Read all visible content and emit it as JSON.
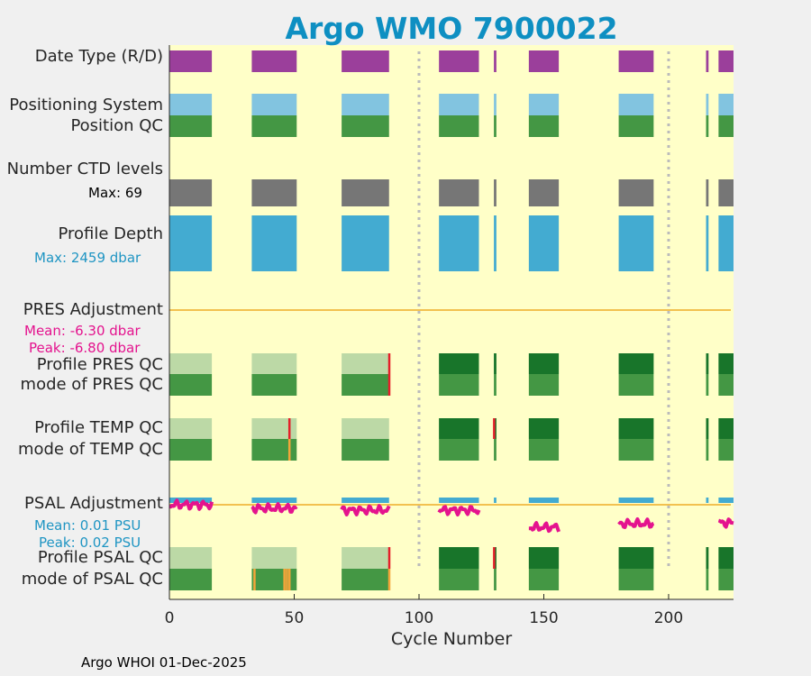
{
  "title": "Argo WMO 7900022",
  "footer": "Argo WHOI 01-Dec-2025",
  "colors": {
    "background": "#ffffc8",
    "title": "#0e8fc2",
    "date_type": "#9b3f9b",
    "positioning": "#82c4e0",
    "qc_good": "#449744",
    "qc_dark": "#18752a",
    "qc_light": "#bcd9a6",
    "qc_bad": "#e5202a",
    "qc_probable": "#f2a53a",
    "ctd_levels": "#767676",
    "profile_depth": "#43abd1",
    "adjustment_line": "#f2c150",
    "psal_adjustment": "#e4138e",
    "annotation_blue": "#1f95c3",
    "annotation_magenta": "#e4138e"
  },
  "panels": {
    "date_type": "Date Type (R/D)",
    "positioning_system": "Positioning System",
    "position_qc": "Position QC",
    "ctd_levels": "Number CTD levels",
    "ctd_max": "Max: 69",
    "profile_depth": "Profile Depth",
    "depth_max": "Max: 2459 dbar",
    "pres_adjustment": "PRES Adjustment",
    "pres_mean": "Mean: -6.30 dbar",
    "pres_peak": "Peak: -6.80 dbar",
    "profile_pres_qc": "Profile PRES QC",
    "mode_pres_qc": "mode of PRES QC",
    "profile_temp_qc": "Profile TEMP QC",
    "mode_temp_qc": "mode of TEMP QC",
    "psal_adjustment": "PSAL Adjustment",
    "psal_mean": "Mean: 0.01 PSU",
    "psal_peak": "Peak: 0.02 PSU",
    "profile_psal_qc": "Profile PSAL QC",
    "mode_psal_qc": "mode of PSAL QC"
  },
  "chart_data": {
    "type": "timeline",
    "title": "Argo WMO 7900022",
    "xlabel": "Cycle Number",
    "xlim": [
      0,
      226
    ],
    "xticks": [
      0,
      50,
      100,
      150,
      200
    ],
    "vertical_markers": [
      100,
      200
    ],
    "segments": [
      [
        0,
        17
      ],
      [
        33,
        51
      ],
      [
        69,
        88
      ],
      [
        108,
        124
      ],
      [
        130,
        131
      ],
      [
        144,
        156
      ],
      [
        180,
        194
      ],
      [
        215,
        216
      ],
      [
        220,
        226
      ]
    ],
    "ctd_levels_max": 69,
    "profile_depth_max_dbar": 2459,
    "pres_adjustment": {
      "mean": -6.3,
      "peak": -6.8,
      "unit": "dbar"
    },
    "psal_adjustment": {
      "mean": 0.01,
      "peak": 0.02,
      "unit": "PSU"
    },
    "pres_qc_bad_cycles": [
      88
    ],
    "temp_qc_bad_cycles": [
      48,
      130
    ],
    "temp_mode_probable_cycles": [
      48
    ],
    "psal_qc_bad_cycles": [
      88,
      130
    ],
    "psal_mode_probable_cycles": [
      34,
      46,
      47,
      48,
      88
    ]
  }
}
